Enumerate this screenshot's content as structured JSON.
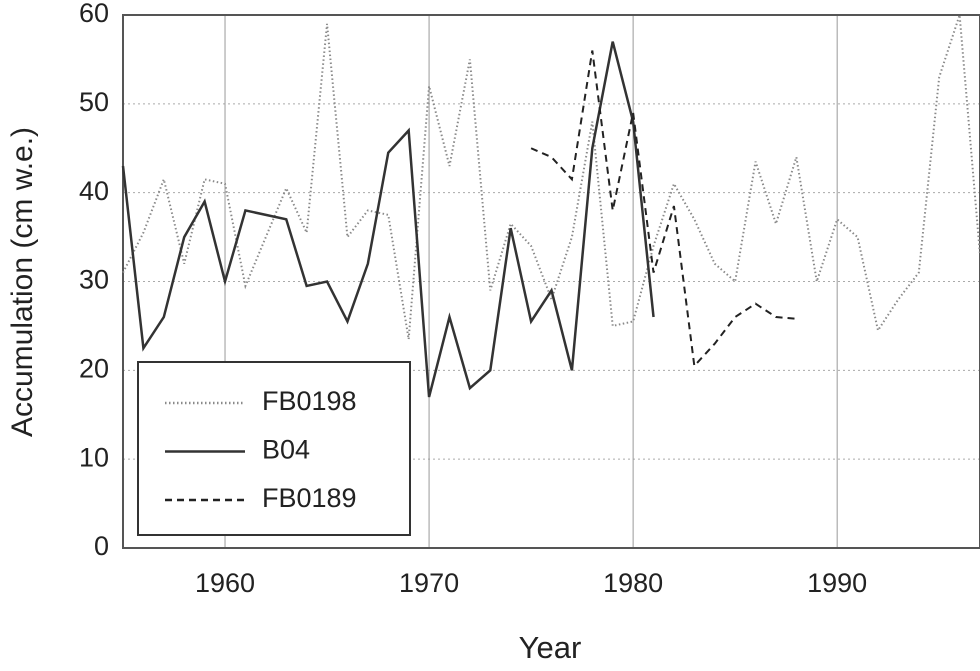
{
  "chart_data": {
    "type": "line",
    "x_label": "Year",
    "y_label": "Accumulation  (cm w.e.)",
    "xlim": [
      1955,
      1997
    ],
    "xticks": [
      1960,
      1970,
      1980,
      1990
    ],
    "ylim": [
      0,
      60
    ],
    "yticks": [
      0,
      10,
      20,
      30,
      40,
      50,
      60
    ],
    "grid": true,
    "legend": "lower left",
    "series": [
      {
        "name": "FB0198",
        "color": "#8a8a8a",
        "style": "dotted",
        "x": [
          1955,
          1956,
          1957,
          1958,
          1959,
          1960,
          1961,
          1962,
          1963,
          1964,
          1965,
          1966,
          1967,
          1968,
          1969,
          1970,
          1971,
          1972,
          1973,
          1974,
          1975,
          1976,
          1977,
          1978,
          1979,
          1980,
          1981,
          1982,
          1983,
          1984,
          1985,
          1986,
          1987,
          1988,
          1989,
          1990,
          1991,
          1992,
          1993,
          1994,
          1995,
          1996,
          1997
        ],
        "values": [
          31,
          35.5,
          41.5,
          32,
          41.5,
          41,
          29.5,
          35,
          40.5,
          35.5,
          59,
          35,
          38,
          37.5,
          23.5,
          52,
          43,
          55,
          29,
          36.5,
          34,
          28,
          35,
          48,
          25,
          25.5,
          34,
          41,
          37,
          32,
          30,
          43.5,
          36.5,
          44,
          30,
          37,
          35,
          24.5,
          28,
          31,
          53,
          60,
          33
        ]
      },
      {
        "name": "B04",
        "color": "#333333",
        "style": "solid",
        "x": [
          1955,
          1956,
          1957,
          1958,
          1959,
          1960,
          1961,
          1962,
          1963,
          1964,
          1965,
          1966,
          1967,
          1968,
          1969,
          1970,
          1971,
          1972,
          1973,
          1974,
          1975,
          1976,
          1977,
          1978,
          1979,
          1980,
          1981
        ],
        "values": [
          43,
          22.5,
          26,
          35,
          39,
          30,
          38,
          37.5,
          37,
          29.5,
          30,
          25.5,
          32,
          44.5,
          47,
          17,
          26,
          18,
          20,
          36,
          25.5,
          29,
          20,
          45,
          57,
          48,
          26
        ]
      },
      {
        "name": "FB0189",
        "color": "#222222",
        "style": "dashed",
        "x": [
          1975,
          1976,
          1977,
          1978,
          1979,
          1980,
          1981,
          1982,
          1983,
          1984,
          1985,
          1986,
          1987,
          1988
        ],
        "values": [
          45,
          44,
          41.5,
          56,
          38,
          49,
          31,
          38.5,
          20.5,
          23,
          26,
          27.5,
          26,
          25.8
        ]
      }
    ]
  }
}
